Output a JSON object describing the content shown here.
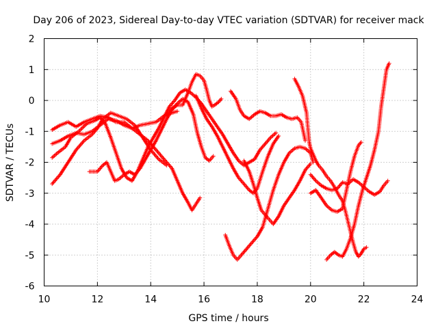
{
  "chart_data": {
    "type": "scatter",
    "title": "Day 206 of 2023, Sidereal Day-to-day VTEC variation (SDTVAR) for receiver mack",
    "xlabel": "GPS time / hours",
    "ylabel": "SDTVAR / TECUs",
    "xlim": [
      10,
      24
    ],
    "ylim": [
      -6,
      2
    ],
    "x_ticks": [
      10,
      12,
      14,
      16,
      18,
      20,
      22,
      24
    ],
    "y_ticks": [
      -6,
      -5,
      -4,
      -3,
      -2,
      -1,
      0,
      1,
      2
    ],
    "grid": true,
    "marker": "plus",
    "color": "#ff0000",
    "series": [
      {
        "name": "track-1",
        "points": [
          [
            10.3,
            -0.95
          ],
          [
            10.6,
            -0.8
          ],
          [
            10.9,
            -0.7
          ],
          [
            11.2,
            -0.85
          ],
          [
            11.5,
            -0.7
          ],
          [
            11.8,
            -0.6
          ],
          [
            12.1,
            -0.5
          ],
          [
            12.4,
            -0.55
          ],
          [
            12.7,
            -0.7
          ],
          [
            13.0,
            -0.7
          ],
          [
            13.3,
            -0.9
          ],
          [
            13.6,
            -1.1
          ],
          [
            13.9,
            -1.3
          ],
          [
            14.2,
            -1.6
          ],
          [
            14.5,
            -1.9
          ],
          [
            14.8,
            -2.2
          ],
          [
            15.0,
            -2.6
          ],
          [
            15.2,
            -3.0
          ],
          [
            15.4,
            -3.3
          ],
          [
            15.55,
            -3.55
          ],
          [
            15.7,
            -3.35
          ],
          [
            15.85,
            -3.15
          ]
        ]
      },
      {
        "name": "track-2",
        "points": [
          [
            10.3,
            -1.4
          ],
          [
            10.6,
            -1.3
          ],
          [
            10.9,
            -1.15
          ],
          [
            11.2,
            -1.05
          ],
          [
            11.5,
            -1.1
          ],
          [
            11.8,
            -1.0
          ],
          [
            12.1,
            -0.8
          ],
          [
            12.4,
            -0.6
          ],
          [
            12.7,
            -0.65
          ],
          [
            13.0,
            -0.8
          ],
          [
            13.3,
            -0.9
          ],
          [
            13.6,
            -0.8
          ],
          [
            13.9,
            -0.75
          ],
          [
            14.2,
            -0.7
          ],
          [
            14.5,
            -0.5
          ],
          [
            14.8,
            -0.4
          ],
          [
            15.0,
            -0.35
          ]
        ]
      },
      {
        "name": "track-3",
        "points": [
          [
            10.3,
            -2.7
          ],
          [
            10.6,
            -2.4
          ],
          [
            10.9,
            -2.0
          ],
          [
            11.2,
            -1.6
          ],
          [
            11.5,
            -1.3
          ],
          [
            11.8,
            -1.1
          ],
          [
            12.0,
            -0.9
          ],
          [
            12.2,
            -0.6
          ],
          [
            12.5,
            -0.4
          ],
          [
            12.8,
            -0.5
          ],
          [
            13.1,
            -0.6
          ],
          [
            13.4,
            -0.8
          ],
          [
            13.7,
            -1.2
          ],
          [
            14.0,
            -1.6
          ],
          [
            14.3,
            -1.9
          ],
          [
            14.6,
            -2.1
          ]
        ]
      },
      {
        "name": "track-4",
        "points": [
          [
            10.3,
            -1.85
          ],
          [
            10.5,
            -1.7
          ],
          [
            10.8,
            -1.5
          ],
          [
            11.0,
            -1.2
          ],
          [
            11.3,
            -1.0
          ],
          [
            11.6,
            -0.75
          ],
          [
            11.9,
            -0.65
          ],
          [
            12.1,
            -0.55
          ],
          [
            12.3,
            -0.75
          ],
          [
            12.5,
            -1.2
          ],
          [
            12.7,
            -1.7
          ],
          [
            12.9,
            -2.2
          ],
          [
            13.1,
            -2.5
          ],
          [
            13.3,
            -2.6
          ],
          [
            13.5,
            -2.3
          ],
          [
            13.7,
            -1.9
          ],
          [
            13.9,
            -1.5
          ],
          [
            14.1,
            -1.2
          ],
          [
            14.3,
            -0.9
          ],
          [
            14.5,
            -0.55
          ],
          [
            14.7,
            -0.2
          ],
          [
            14.9,
            0.0
          ],
          [
            15.1,
            0.25
          ],
          [
            15.3,
            0.35
          ],
          [
            15.5,
            0.25
          ],
          [
            15.7,
            0.1
          ],
          [
            15.9,
            -0.1
          ],
          [
            16.1,
            -0.35
          ],
          [
            16.3,
            -0.6
          ],
          [
            16.5,
            -0.85
          ],
          [
            16.7,
            -1.1
          ],
          [
            16.9,
            -1.4
          ],
          [
            17.1,
            -1.7
          ],
          [
            17.3,
            -1.95
          ],
          [
            17.5,
            -2.1
          ],
          [
            17.7,
            -2.0
          ],
          [
            17.9,
            -1.9
          ],
          [
            18.1,
            -1.6
          ],
          [
            18.3,
            -1.4
          ],
          [
            18.5,
            -1.2
          ],
          [
            18.7,
            -1.05
          ]
        ]
      },
      {
        "name": "track-5",
        "points": [
          [
            11.7,
            -2.3
          ],
          [
            12.0,
            -2.3
          ],
          [
            12.2,
            -2.1
          ],
          [
            12.35,
            -2.0
          ],
          [
            12.5,
            -2.3
          ],
          [
            12.65,
            -2.6
          ],
          [
            12.8,
            -2.55
          ],
          [
            13.0,
            -2.4
          ],
          [
            13.2,
            -2.3
          ],
          [
            13.4,
            -2.4
          ],
          [
            13.6,
            -2.2
          ],
          [
            13.8,
            -1.9
          ],
          [
            14.0,
            -1.6
          ],
          [
            14.2,
            -1.3
          ],
          [
            14.4,
            -0.95
          ],
          [
            14.6,
            -0.6
          ],
          [
            14.8,
            -0.3
          ],
          [
            15.0,
            -0.1
          ],
          [
            15.2,
            0.05
          ],
          [
            15.4,
            -0.05
          ],
          [
            15.6,
            -0.45
          ],
          [
            15.75,
            -1.05
          ],
          [
            15.9,
            -1.5
          ],
          [
            16.05,
            -1.85
          ],
          [
            16.2,
            -1.95
          ],
          [
            16.35,
            -1.8
          ]
        ]
      },
      {
        "name": "track-6",
        "points": [
          [
            14.6,
            -0.45
          ],
          [
            14.8,
            -0.25
          ],
          [
            15.0,
            -0.15
          ],
          [
            15.2,
            -0.15
          ],
          [
            15.4,
            0.25
          ],
          [
            15.55,
            0.6
          ],
          [
            15.7,
            0.85
          ],
          [
            15.85,
            0.8
          ],
          [
            16.0,
            0.65
          ],
          [
            16.1,
            0.35
          ],
          [
            16.2,
            0.0
          ],
          [
            16.3,
            -0.2
          ],
          [
            16.4,
            -0.15
          ],
          [
            16.55,
            -0.05
          ],
          [
            16.65,
            0.05
          ]
        ]
      },
      {
        "name": "track-7",
        "points": [
          [
            15.7,
            0.15
          ],
          [
            15.9,
            -0.25
          ],
          [
            16.1,
            -0.6
          ],
          [
            16.3,
            -0.85
          ],
          [
            16.5,
            -1.15
          ],
          [
            16.7,
            -1.5
          ],
          [
            16.9,
            -1.85
          ],
          [
            17.1,
            -2.2
          ],
          [
            17.3,
            -2.5
          ],
          [
            17.5,
            -2.7
          ],
          [
            17.7,
            -2.9
          ],
          [
            17.85,
            -3.0
          ],
          [
            18.0,
            -2.85
          ],
          [
            18.2,
            -2.3
          ],
          [
            18.4,
            -1.8
          ],
          [
            18.6,
            -1.4
          ],
          [
            18.8,
            -1.15
          ]
        ]
      },
      {
        "name": "track-8",
        "points": [
          [
            16.8,
            -4.35
          ],
          [
            16.95,
            -4.7
          ],
          [
            17.1,
            -5.0
          ],
          [
            17.25,
            -5.15
          ],
          [
            17.4,
            -5.0
          ],
          [
            17.6,
            -4.8
          ],
          [
            17.8,
            -4.6
          ],
          [
            18.0,
            -4.4
          ],
          [
            18.2,
            -4.1
          ],
          [
            18.4,
            -3.5
          ],
          [
            18.6,
            -2.9
          ],
          [
            18.8,
            -2.4
          ],
          [
            19.0,
            -2.0
          ],
          [
            19.2,
            -1.7
          ],
          [
            19.4,
            -1.55
          ],
          [
            19.6,
            -1.5
          ],
          [
            19.8,
            -1.55
          ],
          [
            20.0,
            -1.7
          ],
          [
            20.1,
            -2.0
          ]
        ]
      },
      {
        "name": "track-9",
        "points": [
          [
            17.0,
            0.3
          ],
          [
            17.2,
            0.05
          ],
          [
            17.35,
            -0.3
          ],
          [
            17.5,
            -0.5
          ],
          [
            17.7,
            -0.6
          ],
          [
            17.9,
            -0.45
          ],
          [
            18.1,
            -0.35
          ],
          [
            18.3,
            -0.4
          ],
          [
            18.5,
            -0.5
          ],
          [
            18.7,
            -0.5
          ],
          [
            18.9,
            -0.45
          ],
          [
            19.1,
            -0.55
          ],
          [
            19.3,
            -0.6
          ],
          [
            19.5,
            -0.55
          ],
          [
            19.65,
            -0.7
          ],
          [
            19.8,
            -1.3
          ]
        ]
      },
      {
        "name": "track-10",
        "points": [
          [
            17.5,
            -1.95
          ],
          [
            17.7,
            -2.3
          ],
          [
            17.85,
            -2.7
          ],
          [
            18.0,
            -3.15
          ],
          [
            18.15,
            -3.55
          ],
          [
            18.3,
            -3.7
          ],
          [
            18.45,
            -3.85
          ],
          [
            18.6,
            -4.0
          ],
          [
            18.8,
            -3.75
          ],
          [
            19.0,
            -3.4
          ],
          [
            19.2,
            -3.15
          ],
          [
            19.4,
            -2.9
          ],
          [
            19.6,
            -2.6
          ],
          [
            19.8,
            -2.25
          ],
          [
            20.0,
            -2.05
          ]
        ]
      },
      {
        "name": "track-11",
        "points": [
          [
            19.4,
            0.7
          ],
          [
            19.55,
            0.45
          ],
          [
            19.7,
            0.15
          ],
          [
            19.85,
            -0.4
          ],
          [
            19.9,
            -0.9
          ],
          [
            19.95,
            -1.35
          ],
          [
            20.0,
            -1.55
          ],
          [
            20.1,
            -1.75
          ],
          [
            20.2,
            -1.95
          ],
          [
            20.3,
            -2.1
          ],
          [
            20.45,
            -2.25
          ],
          [
            20.6,
            -2.45
          ],
          [
            20.75,
            -2.6
          ],
          [
            20.9,
            -2.8
          ],
          [
            21.05,
            -3.05
          ],
          [
            21.2,
            -3.25
          ],
          [
            21.3,
            -3.55
          ],
          [
            21.4,
            -3.9
          ],
          [
            21.5,
            -4.25
          ],
          [
            21.6,
            -4.6
          ],
          [
            21.7,
            -4.9
          ],
          [
            21.8,
            -5.05
          ],
          [
            21.9,
            -4.95
          ],
          [
            22.0,
            -4.8
          ],
          [
            22.1,
            -4.75
          ]
        ]
      },
      {
        "name": "track-12",
        "points": [
          [
            20.0,
            -2.4
          ],
          [
            20.2,
            -2.6
          ],
          [
            20.4,
            -2.75
          ],
          [
            20.6,
            -2.85
          ],
          [
            20.8,
            -2.9
          ],
          [
            21.0,
            -2.85
          ],
          [
            21.2,
            -2.65
          ],
          [
            21.4,
            -2.7
          ],
          [
            21.6,
            -2.55
          ],
          [
            21.8,
            -2.65
          ],
          [
            22.0,
            -2.8
          ],
          [
            22.2,
            -2.95
          ],
          [
            22.4,
            -3.05
          ],
          [
            22.6,
            -2.95
          ],
          [
            22.75,
            -2.75
          ],
          [
            22.9,
            -2.6
          ]
        ]
      },
      {
        "name": "track-13",
        "points": [
          [
            20.0,
            -3.0
          ],
          [
            20.2,
            -2.9
          ],
          [
            20.4,
            -3.15
          ],
          [
            20.6,
            -3.4
          ],
          [
            20.8,
            -3.55
          ],
          [
            21.0,
            -3.6
          ],
          [
            21.2,
            -3.5
          ],
          [
            21.35,
            -2.9
          ],
          [
            21.5,
            -2.3
          ],
          [
            21.65,
            -1.8
          ],
          [
            21.8,
            -1.45
          ],
          [
            21.9,
            -1.35
          ]
        ]
      },
      {
        "name": "track-14",
        "points": [
          [
            20.6,
            -5.15
          ],
          [
            20.75,
            -5.0
          ],
          [
            20.9,
            -4.9
          ],
          [
            21.05,
            -5.0
          ],
          [
            21.2,
            -5.05
          ],
          [
            21.35,
            -4.8
          ],
          [
            21.5,
            -4.45
          ],
          [
            21.65,
            -4.0
          ],
          [
            21.8,
            -3.4
          ],
          [
            21.95,
            -2.9
          ],
          [
            22.1,
            -2.5
          ],
          [
            22.25,
            -2.1
          ],
          [
            22.4,
            -1.6
          ],
          [
            22.55,
            -1.0
          ],
          [
            22.65,
            -0.2
          ],
          [
            22.75,
            0.4
          ],
          [
            22.85,
            1.0
          ],
          [
            22.95,
            1.2
          ]
        ]
      }
    ]
  }
}
